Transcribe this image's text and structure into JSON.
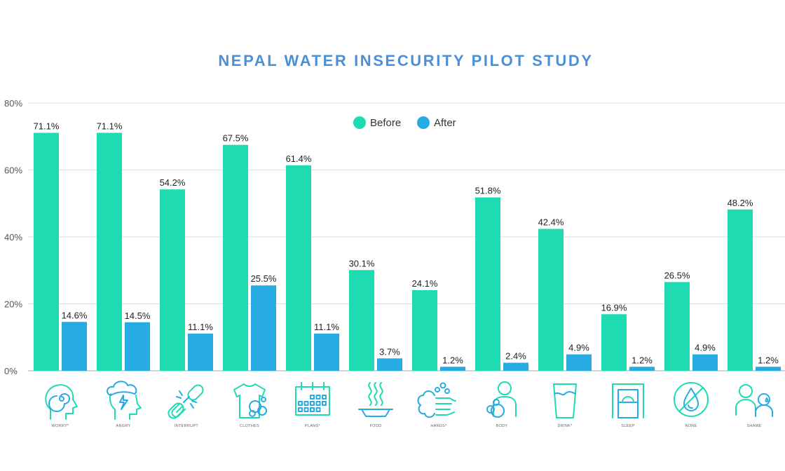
{
  "chart_data": {
    "type": "bar",
    "title": "NEPAL WATER INSECURITY PILOT STUDY",
    "xlabel": "",
    "ylabel": "",
    "ylim": [
      0,
      80
    ],
    "yticks": [
      "0%",
      "20%",
      "40%",
      "60%",
      "80%"
    ],
    "ytick_values": [
      0,
      20,
      40,
      60,
      80
    ],
    "grid": true,
    "legend_position": "top-center",
    "categories": [
      "WORRY*",
      "ANGRY",
      "INTERRUPT",
      "CLOTHES",
      "PLANS*",
      "FOOD",
      "HANDS*",
      "BODY",
      "DRINK*",
      "SLEEP",
      "NONE",
      "SHAME"
    ],
    "category_icons": [
      "head-spiral-icon",
      "head-storm-icon",
      "broken-chain-icon",
      "shirt-bubbles-icon",
      "calendar-icon",
      "steaming-bowl-icon",
      "soapy-hands-icon",
      "person-bathing-icon",
      "water-glass-icon",
      "bed-icon",
      "no-water-icon",
      "two-people-tear-icon"
    ],
    "series": [
      {
        "name": "Before",
        "color": "#1fdbb2",
        "values": [
          71.1,
          71.1,
          54.2,
          67.5,
          61.4,
          30.1,
          24.1,
          51.8,
          42.4,
          16.9,
          26.5,
          48.2
        ],
        "labels": [
          "71.1%",
          "71.1%",
          "54.2%",
          "67.5%",
          "61.4%",
          "30.1%",
          "24.1%",
          "51.8%",
          "42.4%",
          "16.9%",
          "26.5%",
          "48.2%"
        ]
      },
      {
        "name": "After",
        "color": "#27abe3",
        "values": [
          14.6,
          14.5,
          11.1,
          25.5,
          11.1,
          3.7,
          1.2,
          2.4,
          4.9,
          1.2,
          4.9,
          1.2
        ],
        "labels": [
          "14.6%",
          "14.5%",
          "11.1%",
          "25.5%",
          "11.1%",
          "3.7%",
          "1.2%",
          "2.4%",
          "4.9%",
          "1.2%",
          "4.9%",
          "1.2%"
        ]
      }
    ]
  },
  "colors": {
    "title": "#4a90d9",
    "grid": "#dddddd",
    "icon_green": "#1fdbb2",
    "icon_blue": "#27abe3"
  }
}
